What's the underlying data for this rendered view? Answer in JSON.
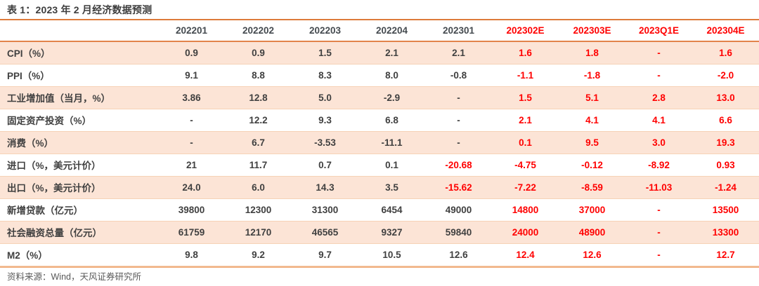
{
  "title": "表 1：2023 年 2 月经济数据预测",
  "source": "资料来源：Wind，天风证券研究所",
  "colors": {
    "accent_orange": "#dd7b3b",
    "header_rule_orange": "#e2834a",
    "footer_rule_orange": "#f0ae7d",
    "forecast_red": "#ff0000",
    "stripe_bg": "#fce4d6",
    "row_divider": "#f6d2b6",
    "text_dark": "#404040",
    "source_text": "#595959"
  },
  "table": {
    "columns": [
      {
        "label": "202201",
        "forecast": false
      },
      {
        "label": "202202",
        "forecast": false
      },
      {
        "label": "202203",
        "forecast": false
      },
      {
        "label": "202204",
        "forecast": false
      },
      {
        "label": "202301",
        "forecast": false
      },
      {
        "label": "202302E",
        "forecast": true
      },
      {
        "label": "202303E",
        "forecast": true
      },
      {
        "label": "2023Q1E",
        "forecast": true
      },
      {
        "label": "202304E",
        "forecast": true
      }
    ],
    "rows": [
      {
        "label": "CPI（%）",
        "cells": [
          "0.9",
          "0.9",
          "1.5",
          "2.1",
          "2.1",
          "1.6",
          "1.8",
          "-",
          "1.6"
        ],
        "red": [
          false,
          false,
          false,
          false,
          false,
          true,
          true,
          true,
          true
        ]
      },
      {
        "label": "PPI（%）",
        "cells": [
          "9.1",
          "8.8",
          "8.3",
          "8.0",
          "-0.8",
          "-1.1",
          "-1.8",
          "-",
          "-2.0"
        ],
        "red": [
          false,
          false,
          false,
          false,
          false,
          true,
          true,
          true,
          true
        ]
      },
      {
        "label": "工业增加值（当月，%）",
        "cells": [
          "3.86",
          "12.8",
          "5.0",
          "-2.9",
          "-",
          "1.5",
          "5.1",
          "2.8",
          "13.0"
        ],
        "red": [
          false,
          false,
          false,
          false,
          false,
          true,
          true,
          true,
          true
        ]
      },
      {
        "label": "固定资产投资（%）",
        "cells": [
          "-",
          "12.2",
          "9.3",
          "6.8",
          "-",
          "2.1",
          "4.1",
          "4.1",
          "6.6"
        ],
        "red": [
          false,
          false,
          false,
          false,
          false,
          true,
          true,
          true,
          true
        ]
      },
      {
        "label": "消费（%）",
        "cells": [
          "-",
          "6.7",
          "-3.53",
          "-11.1",
          "-",
          "0.1",
          "9.5",
          "3.0",
          "19.3"
        ],
        "red": [
          false,
          false,
          false,
          false,
          false,
          true,
          true,
          true,
          true
        ]
      },
      {
        "label": "进口（%，美元计价）",
        "cells": [
          "21",
          "11.7",
          "0.7",
          "0.1",
          "-20.68",
          "-4.75",
          "-0.12",
          "-8.92",
          "0.93"
        ],
        "red": [
          false,
          false,
          false,
          false,
          true,
          true,
          true,
          true,
          true
        ]
      },
      {
        "label": "出口（%，美元计价）",
        "cells": [
          "24.0",
          "6.0",
          "14.3",
          "3.5",
          "-15.62",
          "-7.22",
          "-8.59",
          "-11.03",
          "-1.24"
        ],
        "red": [
          false,
          false,
          false,
          false,
          true,
          true,
          true,
          true,
          true
        ]
      },
      {
        "label": "新增贷款（亿元）",
        "cells": [
          "39800",
          "12300",
          "31300",
          "6454",
          "49000",
          "14800",
          "37000",
          "-",
          "13500"
        ],
        "red": [
          false,
          false,
          false,
          false,
          false,
          true,
          true,
          true,
          true
        ]
      },
      {
        "label": "社会融资总量（亿元）",
        "cells": [
          "61759",
          "12170",
          "46565",
          "9327",
          "59840",
          "24000",
          "48900",
          "-",
          "13300"
        ],
        "red": [
          false,
          false,
          false,
          false,
          false,
          true,
          true,
          true,
          true
        ]
      },
      {
        "label": "M2（%）",
        "cells": [
          "9.8",
          "9.2",
          "9.7",
          "10.5",
          "12.6",
          "12.4",
          "12.6",
          "-",
          "12.7"
        ],
        "red": [
          false,
          false,
          false,
          false,
          false,
          true,
          true,
          true,
          true
        ]
      }
    ]
  }
}
